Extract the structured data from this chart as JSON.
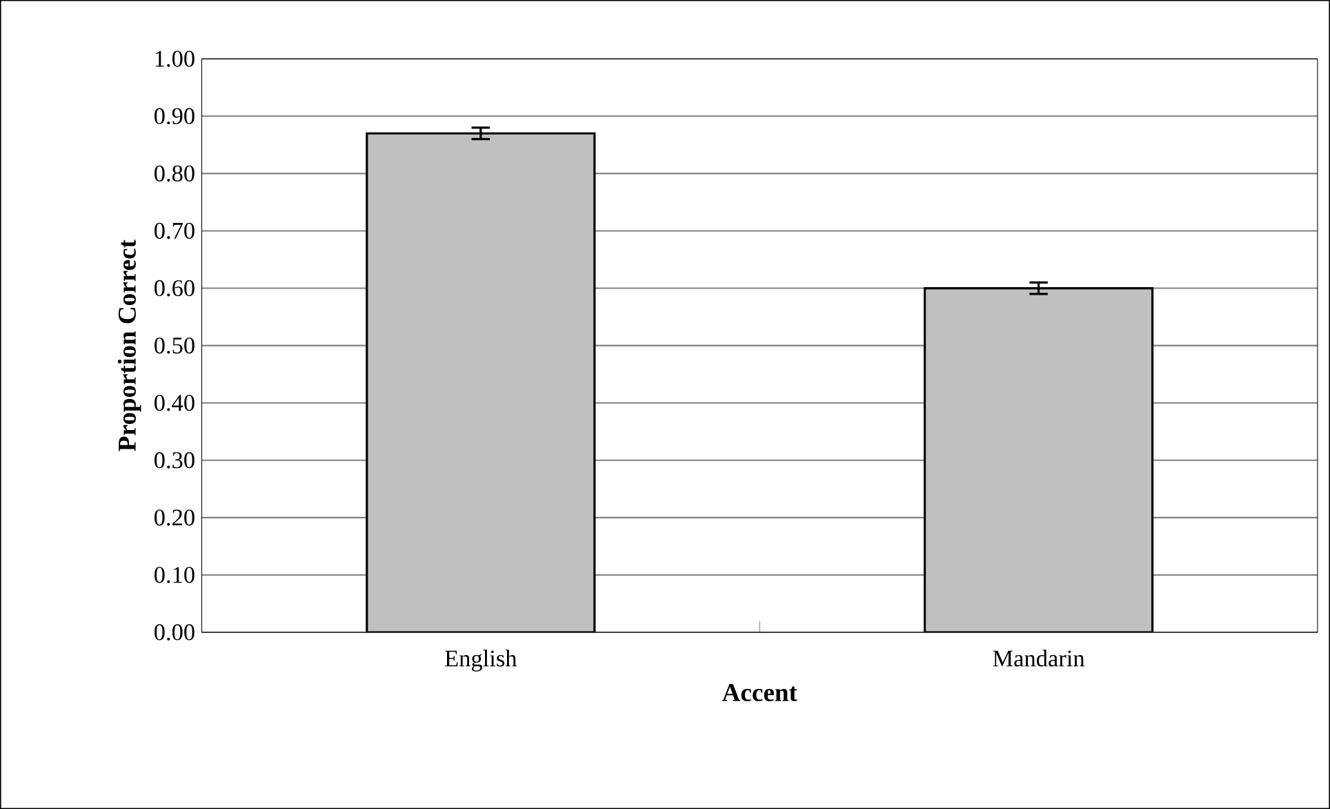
{
  "chart_data": {
    "type": "bar",
    "xlabel": "Accent",
    "ylabel": "Proportion Correct",
    "categories": [
      "English",
      "Mandarin"
    ],
    "values": [
      0.87,
      0.6
    ],
    "errors": [
      0.01,
      0.01
    ],
    "color": "#c0c0c0",
    "ylim": [
      0,
      1
    ],
    "yticks": [
      {
        "value": 0,
        "label": "0.00"
      },
      {
        "value": 0.1,
        "label": "0.10"
      },
      {
        "value": 0.2,
        "label": "0.20"
      },
      {
        "value": 0.3,
        "label": "0.30"
      },
      {
        "value": 0.4,
        "label": "0.40"
      },
      {
        "value": 0.5,
        "label": "0.50"
      },
      {
        "value": 0.6,
        "label": "0.60"
      },
      {
        "value": 0.7,
        "label": "0.70"
      },
      {
        "value": 0.8,
        "label": "0.80"
      },
      {
        "value": 0.9,
        "label": "0.90"
      },
      {
        "value": 1,
        "label": "1.00"
      }
    ],
    "grid": "y"
  }
}
